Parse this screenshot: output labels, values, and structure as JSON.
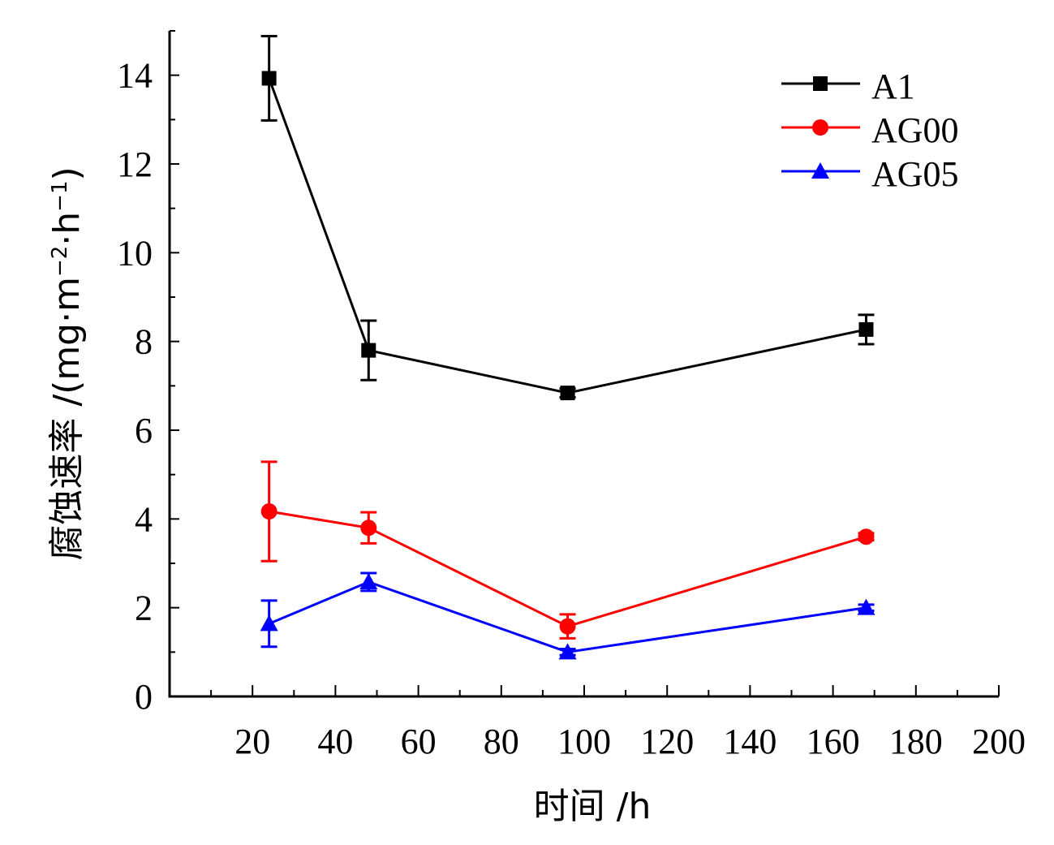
{
  "chart_data": {
    "type": "line",
    "title": "",
    "xlabel": "时间 /h",
    "ylabel_main": "腐蚀速率 /(mg·m",
    "ylabel_sup1": "−2",
    "ylabel_mid": "·h",
    "ylabel_sup2": "−1",
    "ylabel_end": ")",
    "xlim": [
      0,
      200
    ],
    "ylim": [
      0,
      15
    ],
    "xticks": [
      20,
      40,
      60,
      80,
      100,
      120,
      140,
      160,
      180,
      200
    ],
    "yticks": [
      0,
      2,
      4,
      6,
      8,
      10,
      12,
      14
    ],
    "x": [
      24,
      48,
      96,
      168
    ],
    "series": [
      {
        "name": "A1",
        "marker": "square",
        "color": "#000000",
        "values": [
          13.93,
          7.8,
          6.84,
          8.27
        ],
        "errors": [
          0.95,
          0.67,
          0.1,
          0.33
        ]
      },
      {
        "name": "AG00",
        "marker": "circle",
        "color": "#ff0000",
        "values": [
          4.17,
          3.8,
          1.58,
          3.6
        ],
        "errors": [
          1.12,
          0.35,
          0.27,
          0.08
        ]
      },
      {
        "name": "AG05",
        "marker": "triangle",
        "color": "#0000ff",
        "values": [
          1.64,
          2.58,
          1.0,
          2.0
        ],
        "errors": [
          0.52,
          0.2,
          0.07,
          0.07
        ]
      }
    ],
    "legend_position": "top-right"
  }
}
